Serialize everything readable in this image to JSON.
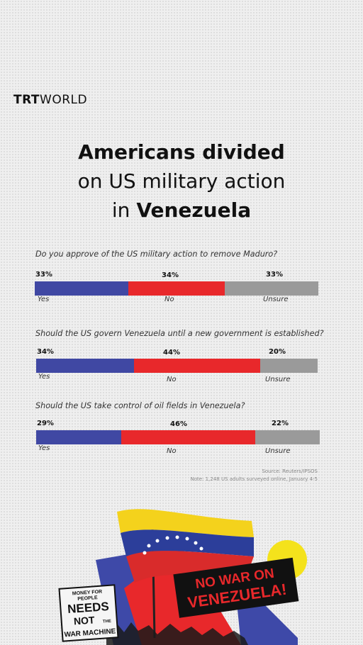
{
  "brand": {
    "logo_part1": "TRT",
    "logo_part2": "WORLD"
  },
  "title": {
    "line1": "Americans divided",
    "line2": "on US military action",
    "line3_prefix": "in ",
    "line3_bold": "Venezuela"
  },
  "colors": {
    "yes": "#4048a3",
    "no": "#e8282b",
    "unsure": "#9a9a9a"
  },
  "chart_data": [
    {
      "type": "bar",
      "question": "Do you approve of the US military action to remove Maduro?",
      "categories": [
        "Yes",
        "No",
        "Unsure"
      ],
      "values": [
        33,
        34,
        33
      ],
      "value_labels": [
        "33%",
        "34%",
        "33%"
      ]
    },
    {
      "type": "bar",
      "question": "Should the US govern Venezuela until a new government is established?",
      "categories": [
        "Yes",
        "No",
        "Unsure"
      ],
      "values": [
        34,
        44,
        20
      ],
      "value_labels": [
        "34%",
        "44%",
        "20%"
      ]
    },
    {
      "type": "bar",
      "question": "Should the US take control of oil fields in Venezuela?",
      "categories": [
        "Yes",
        "No",
        "Unsure"
      ],
      "values": [
        29,
        46,
        22
      ],
      "value_labels": [
        "29%",
        "46%",
        "22%"
      ]
    }
  ],
  "footer": {
    "source": "Source: Reuters/IPSOS",
    "note": "Note: 1,248 US adults surveyed online, January 4-5"
  },
  "collage": {
    "sign_right_line1": "NO WAR ON",
    "sign_right_line2": "VENEZUELA!",
    "sign_left_line1": "MONEY FOR",
    "sign_left_line2": "PEOPLE",
    "sign_left_line3": "NEEDS",
    "sign_left_line4": "NOT",
    "sign_left_line5": "THE",
    "sign_left_line6": "WAR MACHINE"
  }
}
